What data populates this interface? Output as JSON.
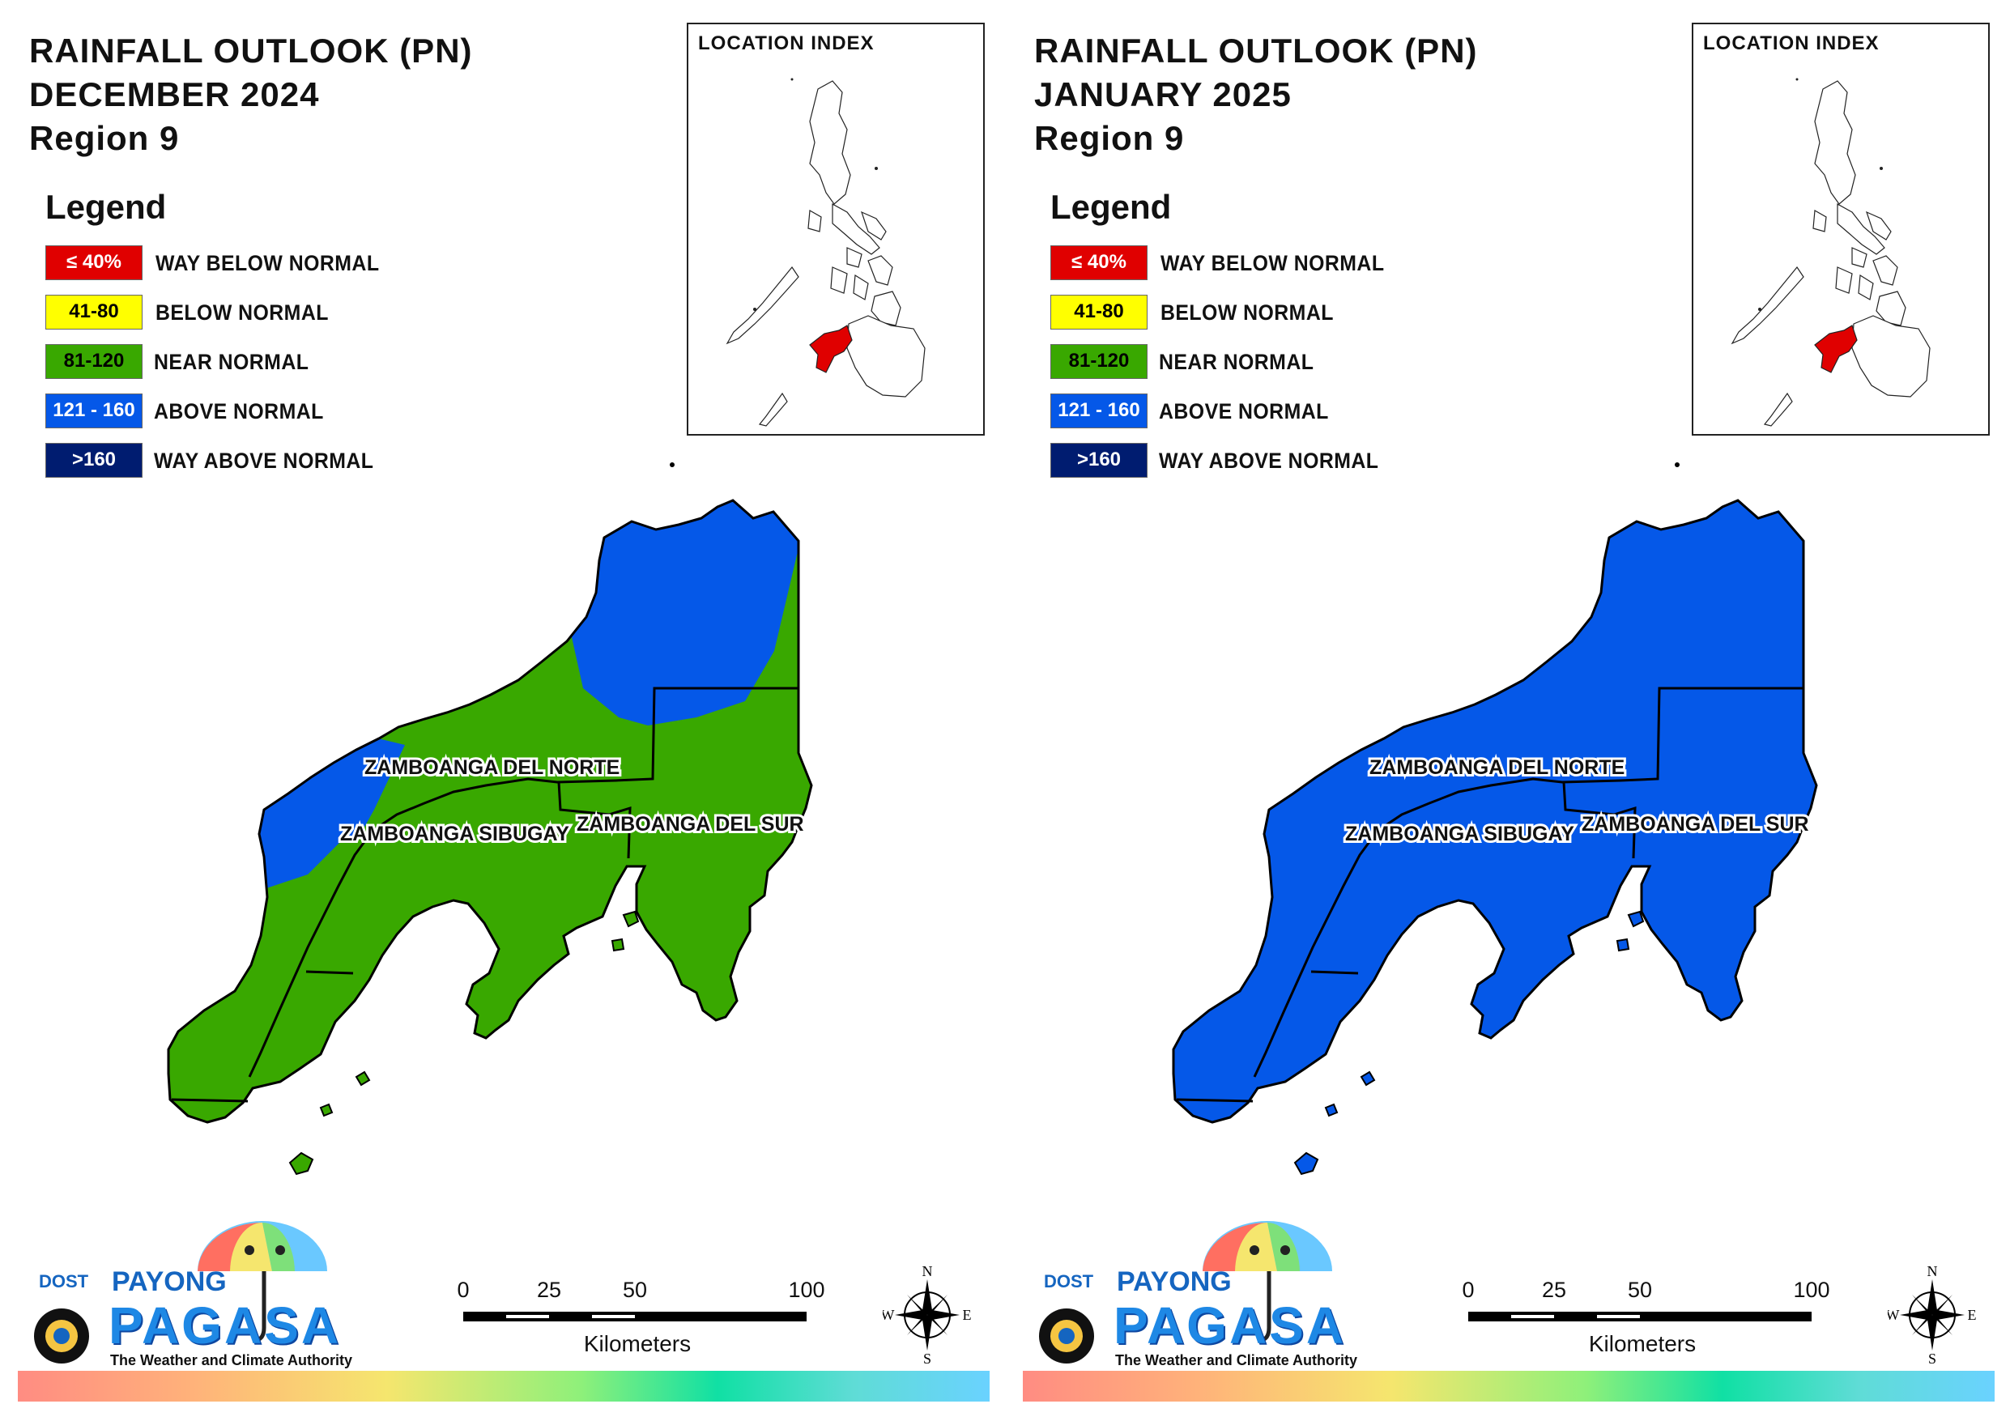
{
  "colors": {
    "way_below": "#e00000",
    "below": "#ffff00",
    "near": "#39a800",
    "above": "#0558e8",
    "way_above": "#001c70",
    "index_highlight": "#e00000"
  },
  "legend": {
    "title": "Legend",
    "items": [
      {
        "range": "≤ 40%",
        "label": "WAY BELOW NORMAL",
        "text_color": "#ffffff"
      },
      {
        "range": "41-80",
        "label": "BELOW NORMAL",
        "text_color": "#000000"
      },
      {
        "range": "81-120",
        "label": "NEAR NORMAL",
        "text_color": "#000000"
      },
      {
        "range": "121 - 160",
        "label": "ABOVE NORMAL",
        "text_color": "#ffffff"
      },
      {
        "range": ">160",
        "label": "WAY ABOVE NORMAL",
        "text_color": "#ffffff"
      }
    ]
  },
  "location_index": {
    "title": "LOCATION INDEX"
  },
  "provinces": {
    "norte": "ZAMBOANGA DEL NORTE",
    "sibugay": "ZAMBOANGA SIBUGAY",
    "sur": "ZAMBOANGA DEL SUR"
  },
  "scale": {
    "ticks": [
      "0",
      "25",
      "50",
      "100"
    ],
    "units": "Kilometers"
  },
  "compass": {
    "n": "N",
    "e": "E",
    "s": "S",
    "w": "W"
  },
  "logo": {
    "dost": "DOST",
    "payong": "PAYONG",
    "pagasa": "PAGASA",
    "tagline": "The Weather and Climate Authority"
  },
  "maps": [
    {
      "title_line1": "RAINFALL OUTLOOK (PN)",
      "title_line2": "DECEMBER 2024",
      "title_line3": "Region 9",
      "classes": [
        "near normal",
        "above normal"
      ]
    },
    {
      "title_line1": "RAINFALL OUTLOOK (PN)",
      "title_line2": "JANUARY 2025",
      "title_line3": "Region 9",
      "classes": [
        "above normal"
      ]
    }
  ]
}
